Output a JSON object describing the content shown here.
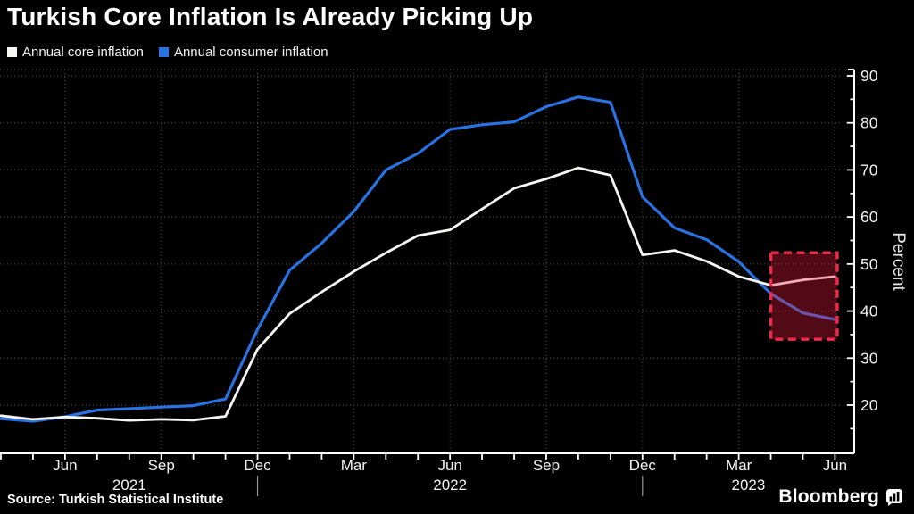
{
  "header": {
    "title": "Turkish Core Inflation Is Already Picking Up"
  },
  "legend": [
    {
      "label": "Annual core inflation",
      "color": "#f5f5f2"
    },
    {
      "label": "Annual consumer inflation",
      "color": "#2a72e2"
    }
  ],
  "footer": {
    "source": "Source: Turkish Statistical Institute",
    "brand": "Bloomberg"
  },
  "chart_data": {
    "type": "line",
    "title": "Turkish Core Inflation Is Already Picking Up",
    "xlabel": "",
    "ylabel": "Percent",
    "ylim": [
      10,
      91
    ],
    "grid": "dotted",
    "legend_position": "top-left",
    "y_ticks": [
      20,
      30,
      40,
      50,
      60,
      70,
      80,
      90
    ],
    "y_minor_ticks": [
      15,
      25,
      35,
      45,
      55,
      65,
      75,
      85
    ],
    "x": [
      "Apr 2021",
      "May 2021",
      "Jun 2021",
      "Jul 2021",
      "Aug 2021",
      "Sep 2021",
      "Oct 2021",
      "Nov 2021",
      "Dec 2021",
      "Jan 2022",
      "Feb 2022",
      "Mar 2022",
      "Apr 2022",
      "May 2022",
      "Jun 2022",
      "Jul 2022",
      "Aug 2022",
      "Sep 2022",
      "Oct 2022",
      "Nov 2022",
      "Dec 2022",
      "Jan 2023",
      "Feb 2023",
      "Mar 2023",
      "Apr 2023",
      "May 2023",
      "Jun 2023"
    ],
    "x_tick_labels": [
      {
        "index": 2,
        "label": "Jun"
      },
      {
        "index": 5,
        "label": "Sep"
      },
      {
        "index": 8,
        "label": "Dec"
      },
      {
        "index": 11,
        "label": "Mar"
      },
      {
        "index": 14,
        "label": "Jun"
      },
      {
        "index": 17,
        "label": "Sep"
      },
      {
        "index": 20,
        "label": "Dec"
      },
      {
        "index": 23,
        "label": "Mar"
      },
      {
        "index": 26,
        "label": "Jun"
      }
    ],
    "year_labels": [
      {
        "label": "2021",
        "center_index": 4.0
      },
      {
        "label": "2022",
        "center_index": 14.0
      },
      {
        "label": "2023",
        "center_index": 23.3
      }
    ],
    "year_separator_indices": [
      8,
      20
    ],
    "series": [
      {
        "name": "Annual core inflation",
        "color": "#f5f5f2",
        "values": [
          17.77,
          16.99,
          17.47,
          17.22,
          16.76,
          16.98,
          16.82,
          17.62,
          31.88,
          39.45,
          44.05,
          48.39,
          52.37,
          56.04,
          57.26,
          61.69,
          66.09,
          68.09,
          70.45,
          68.86,
          51.93,
          52.89,
          50.58,
          47.36,
          45.48,
          46.62,
          47.33
        ]
      },
      {
        "name": "Annual consumer inflation",
        "color": "#2a72e2",
        "values": [
          17.14,
          16.59,
          17.53,
          18.95,
          19.25,
          19.58,
          19.89,
          21.31,
          36.08,
          48.69,
          54.44,
          61.14,
          69.97,
          73.5,
          78.62,
          79.6,
          80.21,
          83.45,
          85.51,
          84.39,
          64.27,
          57.68,
          55.18,
          50.51,
          43.68,
          39.59,
          38.21
        ]
      }
    ],
    "highlight_box": {
      "start_index": 24,
      "end_index": 26.07,
      "y_min": 34.0,
      "y_max": 52.4,
      "fill": "rgba(236,30,64,0.34)",
      "border": "#ee2b4a"
    }
  }
}
